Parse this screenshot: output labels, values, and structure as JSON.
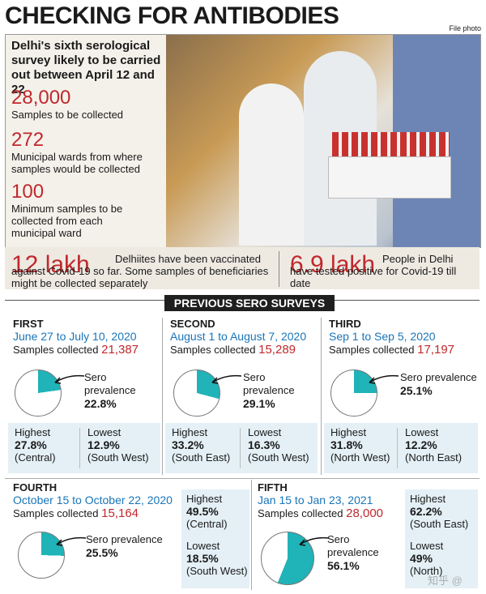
{
  "title": "CHECKING FOR ANTIBODIES",
  "credit": "File photo",
  "intro": "Delhi's sixth serological survey likely to be carried out between April 12 and 22",
  "stats": [
    {
      "value": "28,000",
      "label": "Samples to be collected"
    },
    {
      "value": "272",
      "label": "Municipal wards from where samples would be collected"
    },
    {
      "value": "100",
      "label": "Minimum samples to be collected from each municipal ward"
    }
  ],
  "band": [
    {
      "value": "12 lakh",
      "text": "Delhiites have been vaccinated against Covid-19 so far. Some samples of beneficiaries might be collected separately"
    },
    {
      "value": "6.9 lakh",
      "text": "People in Delhi have tested positive for Covid-19 till date"
    }
  ],
  "section_title": "PREVIOUS SERO SURVEYS",
  "surveys": [
    {
      "name": "FIRST",
      "dates": "June 27 to July 10, 2020",
      "collected_label": "Samples collected",
      "collected": "21,387",
      "sero_label": "Sero prevalence",
      "sero": "22.8%",
      "sero_value": 22.8,
      "highest_label": "Highest",
      "highest": "27.8%",
      "highest_region": "(Central)",
      "lowest_label": "Lowest",
      "lowest": "12.9%",
      "lowest_region": "(South West)"
    },
    {
      "name": "SECOND",
      "dates": "August 1 to August 7, 2020",
      "collected_label": "Samples collected",
      "collected": "15,289",
      "sero_label": "Sero prevalence",
      "sero": "29.1%",
      "sero_value": 29.1,
      "highest_label": "Highest",
      "highest": "33.2%",
      "highest_region": "(South East)",
      "lowest_label": "Lowest",
      "lowest": "16.3%",
      "lowest_region": "(South West)"
    },
    {
      "name": "THIRD",
      "dates": "Sep 1 to Sep 5, 2020",
      "collected_label": "Samples collected",
      "collected": "17,197",
      "sero_label": "Sero prevalence",
      "sero": "25.1%",
      "sero_value": 25.1,
      "highest_label": "Highest",
      "highest": "31.8%",
      "highest_region": "(North West)",
      "lowest_label": "Lowest",
      "lowest": "12.2%",
      "lowest_region": "(North East)"
    },
    {
      "name": "FOURTH",
      "dates": "October 15 to October 22, 2020",
      "collected_label": "Samples collected",
      "collected": "15,164",
      "sero_label": "Sero prevalence",
      "sero": "25.5%",
      "sero_value": 25.5,
      "highest_label": "Highest",
      "highest": "49.5%",
      "highest_region": "(Central)",
      "lowest_label": "Lowest",
      "lowest": "18.5%",
      "lowest_region": "(South West)"
    },
    {
      "name": "FIFTH",
      "dates": "Jan 15 to Jan 23, 2021",
      "collected_label": "Samples collected",
      "collected": "28,000",
      "sero_label": "Sero prevalence",
      "sero": "56.1%",
      "sero_value": 56.1,
      "highest_label": "Highest",
      "highest": "62.2%",
      "highest_region": "(South East)",
      "lowest_label": "Lowest",
      "lowest": "49%",
      "lowest_region": "(North)"
    }
  ],
  "colors": {
    "accent_red": "#c0282d",
    "date_blue": "#1a75b8",
    "pie_teal": "#20b3b8",
    "panel_blue": "#e4f0f6"
  },
  "watermark": "知乎 @"
}
